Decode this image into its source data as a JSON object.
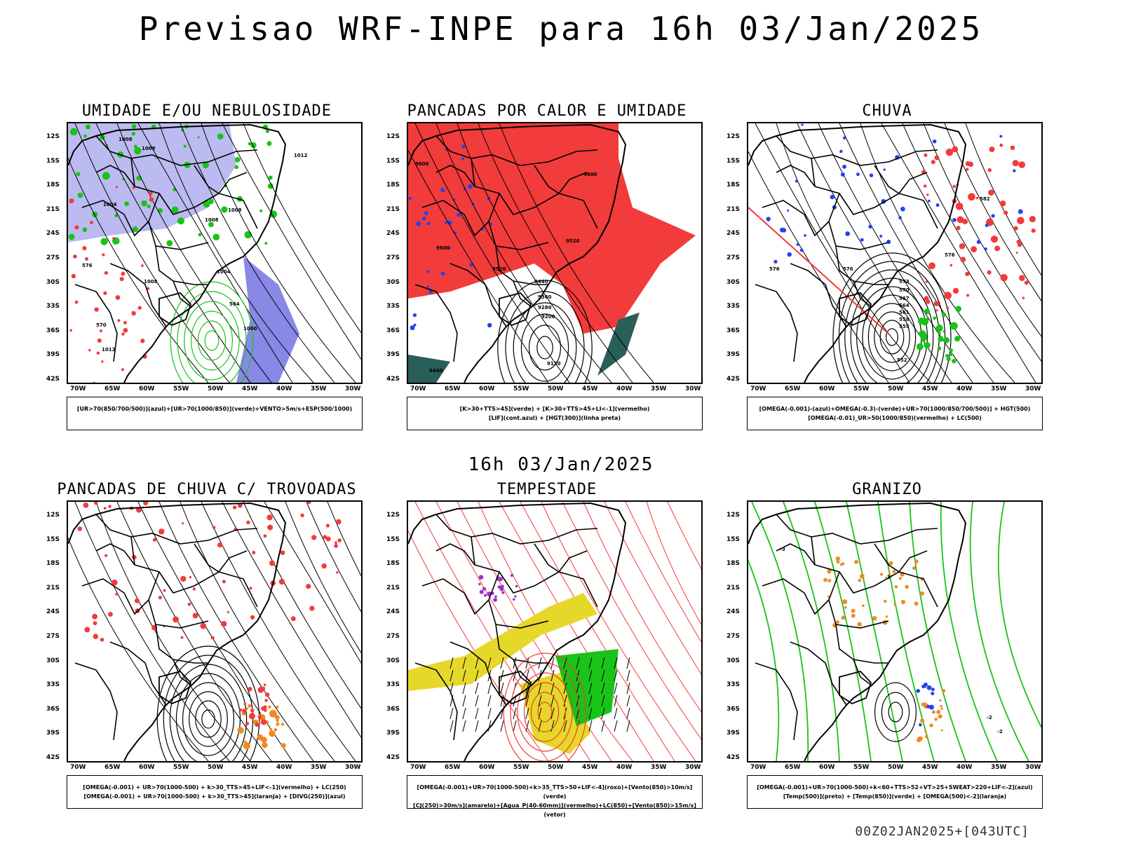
{
  "title": "Previsao WRF-INPE  para 16h 03/Jan/2025",
  "mid_title": "16h 03/Jan/2025",
  "footer": "00Z02JAN2025+[043UTC]",
  "lat_labels": [
    "12S",
    "15S",
    "18S",
    "21S",
    "24S",
    "27S",
    "30S",
    "33S",
    "36S",
    "39S",
    "42S"
  ],
  "lon_labels": [
    "70W",
    "65W",
    "60W",
    "55W",
    "50W",
    "45W",
    "40W",
    "35W",
    "30W"
  ],
  "panels": [
    {
      "title": "UMIDADE E/OU NEBULOSIDADE",
      "legend": [
        "[UR>70(850/700/500)](azul)+[UR>70(1000/850)](verde)+VENTO>5m/s+ESP(500/1000)"
      ]
    },
    {
      "title": "PANCADAS POR CALOR E UMIDADE",
      "legend": [
        "[K>30+TTS>45](verde) + [K>30+TTS>45+LI<-1](vermelho)",
        "[LIF](cont.azul) + [HGT(300)](linha preta)"
      ]
    },
    {
      "title": "CHUVA",
      "legend": [
        "[OMEGA(-0.001)-(azul)+OMEGA(-0.3)-(verde)+UR>70(1000/850/700/500)] + HGT(500)",
        "[OMEGA(-0.01)_UR>50(1000/850)(vermelho) + LC(500)"
      ]
    },
    {
      "title": "PANCADAS DE CHUVA C/ TROVOADAS",
      "legend": [
        "[OMEGA(-0.001) + UR>70(1000-500) + k>30_TTS>45+LIF<-1](vermelho) + LC(250)",
        "[OMEGA(-0.001) + UR>70(1000-500) + k>30_TTS>45](laranja) + [DIVG(250)](azul)"
      ]
    },
    {
      "title": "TEMPESTADE",
      "legend": [
        "[OMEGA(-0.001)+UR>70(1000-500)+k>35_TTS>50+LIF<-4](roxo)+[Vento(850)>10m/s](verde)",
        "[CJ(250)>30m/s](amarelo)+[Agua_P(40-60mm)](vermelho)+LC(850)+[Vento(850)>15m/s](vetor)"
      ]
    },
    {
      "title": "GRANIZO",
      "legend": [
        "[OMEGA(-0.001)+UR>70(1000-500)+k<60+TTS>52+VT>25+SWEAT>220+LIF<-2](azul)",
        "[Temp(500)](preto) + [Temp(850)](verde) + [OMEGA(500)<-2](laranja)"
      ]
    }
  ],
  "colors": {
    "red": "#f23b3b",
    "green": "#17c417",
    "blue": "#2244ee",
    "lavender": "#aaaaee",
    "yellow": "#e6d82a",
    "orange": "#f08a24",
    "teal": "#2a5e58",
    "purple": "#9933cc"
  },
  "contour_labels": {
    "p1": [
      "1008",
      "1008",
      "1004",
      "1008",
      "1008",
      "1012",
      "1004",
      "1008",
      "1000",
      "1012",
      "576",
      "570",
      "564"
    ],
    "p2": [
      "9600",
      "9600",
      "9520",
      "9440",
      "9360",
      "9280",
      "9200",
      "9120",
      "9600",
      "9520",
      "9440"
    ],
    "p3": [
      "576",
      "576",
      "573",
      "570",
      "567",
      "564",
      "561",
      "558",
      "555",
      "552",
      "576",
      "582"
    ],
    "p6": [
      "-3",
      "-3",
      "-2",
      "-2"
    ]
  }
}
